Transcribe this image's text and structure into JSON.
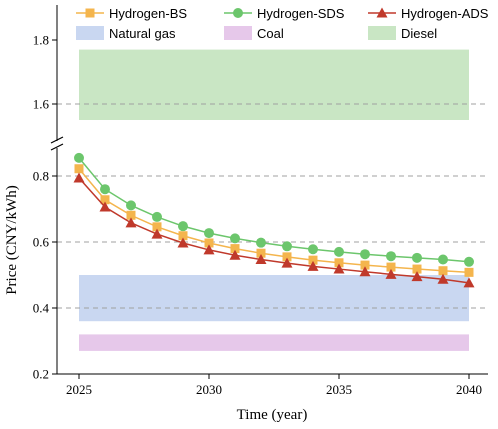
{
  "chart_data": {
    "type": "line",
    "xlabel": "Time (year)",
    "ylabel": "Price (CNY/kWh)",
    "x_ticks": [
      2025,
      2030,
      2035,
      2040
    ],
    "y_ticks_lower": [
      "0.2",
      "0.4",
      "0.6",
      "0.8"
    ],
    "y_ticks_upper": [
      "1.6",
      "1.8"
    ],
    "y_break": "between 0.85 and 1.55",
    "grid": "dashed horizontal lines at 0.4, 0.6, 0.8 and 1.6",
    "legend_position": "top",
    "x": [
      2025,
      2026,
      2027,
      2028,
      2029,
      2030,
      2031,
      2032,
      2033,
      2034,
      2035,
      2036,
      2037,
      2038,
      2039,
      2040
    ],
    "series": [
      {
        "name": "Hydrogen-BS",
        "color": "#f4b54d",
        "marker": "square",
        "values": [
          0.822,
          0.728,
          0.681,
          0.646,
          0.619,
          0.597,
          0.58,
          0.566,
          0.555,
          0.545,
          0.537,
          0.53,
          0.524,
          0.518,
          0.513,
          0.508
        ]
      },
      {
        "name": "Hydrogen-SDS",
        "color": "#6cc66c",
        "marker": "circle",
        "values": [
          0.855,
          0.76,
          0.711,
          0.676,
          0.648,
          0.627,
          0.611,
          0.598,
          0.587,
          0.578,
          0.57,
          0.563,
          0.557,
          0.552,
          0.547,
          0.54
        ]
      },
      {
        "name": "Hydrogen-ADS",
        "color": "#c0392b",
        "marker": "triangle",
        "values": [
          0.794,
          0.706,
          0.658,
          0.624,
          0.597,
          0.576,
          0.56,
          0.547,
          0.536,
          0.526,
          0.518,
          0.51,
          0.502,
          0.495,
          0.487,
          0.476
        ]
      }
    ],
    "ranges": [
      {
        "name": "Natural gas",
        "color": "#c9d7f1",
        "low": 0.36,
        "high": 0.5
      },
      {
        "name": "Coal",
        "color": "#e6c8ea",
        "low": 0.27,
        "high": 0.32
      },
      {
        "name": "Diesel",
        "color": "#c9e6c4",
        "low": 1.55,
        "high": 1.77
      }
    ]
  }
}
